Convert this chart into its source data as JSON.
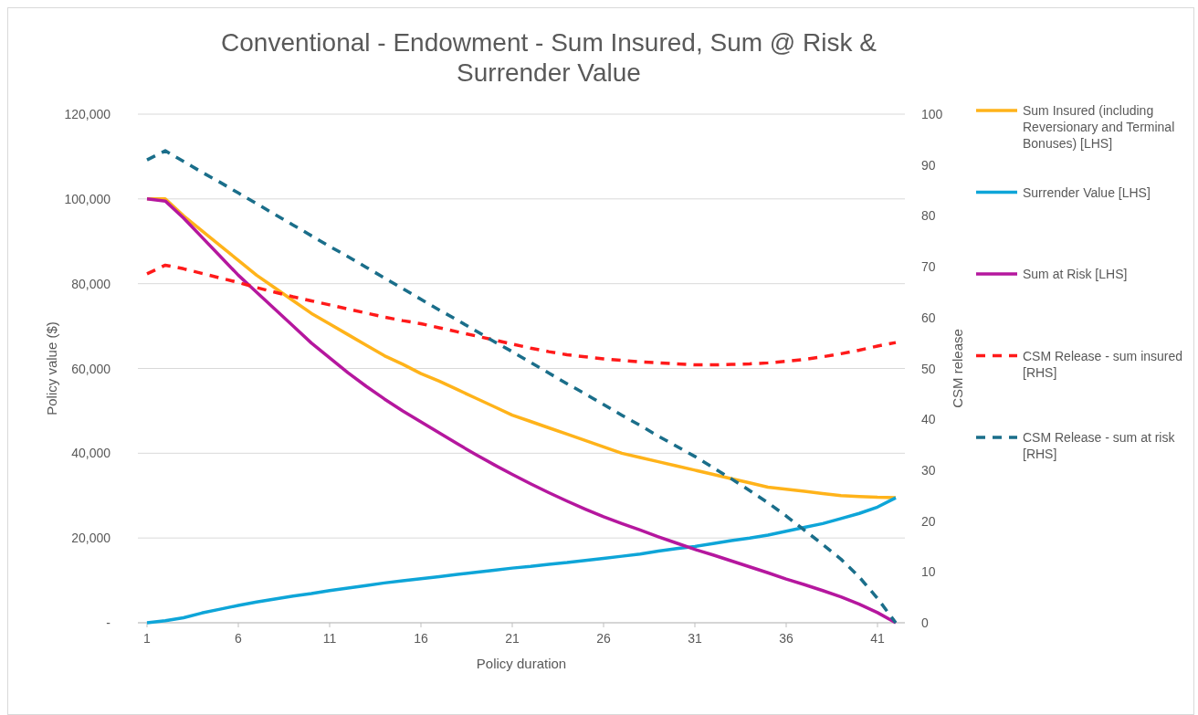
{
  "chart_data": {
    "type": "line",
    "title": "Conventional - Endowment - Sum Insured, Sum @ Risk & Surrender Value",
    "xlabel": "Policy duration",
    "ylabel": "Policy value ($)",
    "y2label": "CSM release",
    "x": [
      1,
      2,
      3,
      4,
      5,
      6,
      7,
      8,
      9,
      10,
      11,
      12,
      13,
      14,
      15,
      16,
      17,
      18,
      19,
      20,
      21,
      22,
      23,
      24,
      25,
      26,
      27,
      28,
      29,
      30,
      31,
      32,
      33,
      34,
      35,
      36,
      37,
      38,
      39,
      40,
      41,
      42
    ],
    "xlim": [
      0.5,
      42.5
    ],
    "xticks": [
      1,
      6,
      11,
      16,
      21,
      26,
      31,
      36,
      41
    ],
    "ylim": [
      0,
      120000
    ],
    "yticks": [
      {
        "value": 0,
        "label": "-"
      },
      {
        "value": 20000,
        "label": "20,000"
      },
      {
        "value": 40000,
        "label": "40,000"
      },
      {
        "value": 60000,
        "label": "60,000"
      },
      {
        "value": 80000,
        "label": "80,000"
      },
      {
        "value": 100000,
        "label": "100,000"
      },
      {
        "value": 120000,
        "label": "120,000"
      }
    ],
    "y2lim": [
      0,
      100
    ],
    "y2ticks": [
      0,
      10,
      20,
      30,
      40,
      50,
      60,
      70,
      80,
      90,
      100
    ],
    "grid": "y",
    "legend": "right",
    "marker": "none",
    "series": [
      {
        "name": "Sum Insured (including Reversionary and Terminal Bonuses) [LHS]",
        "color": "#ffb31a",
        "line_style": "solid",
        "values": [
          100000,
          100000,
          96000,
          92500,
          89000,
          85500,
          82000,
          79000,
          76000,
          73000,
          70500,
          68000,
          65500,
          63000,
          61000,
          58800,
          57000,
          55000,
          53000,
          51000,
          49000,
          47500,
          46000,
          44500,
          43000,
          41500,
          40000,
          39000,
          38000,
          37000,
          36000,
          35000,
          34000,
          33000,
          32000,
          31500,
          31000,
          30500,
          30000,
          29800,
          29600,
          29500
        ]
      },
      {
        "name": "Surrender Value [LHS]",
        "color": "#0ea5d8",
        "line_style": "solid",
        "values": [
          0,
          500,
          1200,
          2300,
          3200,
          4100,
          4900,
          5600,
          6300,
          6900,
          7600,
          8200,
          8800,
          9400,
          9900,
          10400,
          10900,
          11400,
          11900,
          12400,
          12900,
          13300,
          13800,
          14200,
          14700,
          15200,
          15700,
          16200,
          16900,
          17500,
          18000,
          18700,
          19400,
          20000,
          20700,
          21600,
          22500,
          23400,
          24600,
          25800,
          27300,
          29500
        ]
      },
      {
        "name": "Sum at Risk [LHS]",
        "color": "#b5179e",
        "line_style": "solid",
        "values": [
          100000,
          99500,
          95500,
          91000,
          86500,
          82000,
          78000,
          74000,
          70000,
          66000,
          62500,
          59000,
          55800,
          52800,
          50000,
          47400,
          44800,
          42200,
          39700,
          37300,
          35000,
          32800,
          30700,
          28700,
          26800,
          25000,
          23400,
          21900,
          20300,
          18800,
          17300,
          16000,
          14600,
          13200,
          11800,
          10300,
          9000,
          7600,
          6100,
          4400,
          2400,
          0
        ]
      },
      {
        "name": "CSM Release - sum insured [RHS]",
        "color": "#ff1a1a",
        "line_style": "dashed",
        "axis": "y2",
        "values": [
          68.6,
          70.3,
          69.6,
          68.7,
          67.8,
          66.9,
          65.9,
          65.0,
          64.1,
          63.3,
          62.5,
          61.7,
          60.9,
          60.1,
          59.4,
          58.8,
          58.0,
          57.2,
          56.4,
          55.6,
          54.8,
          54.0,
          53.3,
          52.7,
          52.3,
          51.9,
          51.6,
          51.3,
          51.1,
          50.9,
          50.7,
          50.7,
          50.8,
          50.9,
          51.1,
          51.4,
          51.8,
          52.3,
          52.9,
          53.6,
          54.4,
          55.1
        ]
      },
      {
        "name": "CSM Release - sum at risk [RHS]",
        "color": "#1a6e8a",
        "line_style": "dashed",
        "axis": "y2",
        "values": [
          91.0,
          92.8,
          90.7,
          88.6,
          86.6,
          84.5,
          82.4,
          80.3,
          78.2,
          76.1,
          74.0,
          72.0,
          69.9,
          67.8,
          65.7,
          63.6,
          61.5,
          59.5,
          57.4,
          55.3,
          53.3,
          51.2,
          49.1,
          47.0,
          45.0,
          42.9,
          40.8,
          38.8,
          36.7,
          34.7,
          32.7,
          30.5,
          28.3,
          26.0,
          23.6,
          21.0,
          18.2,
          15.4,
          12.5,
          9.0,
          4.8,
          0
        ]
      }
    ]
  }
}
